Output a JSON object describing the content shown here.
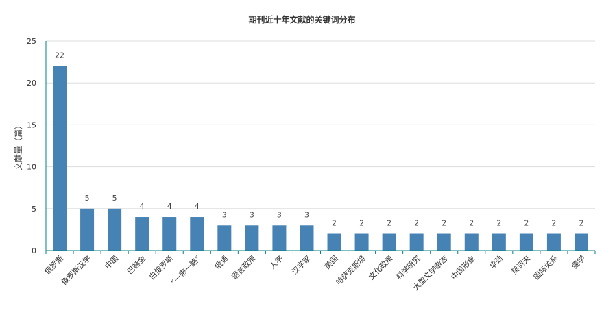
{
  "chart_data": {
    "type": "bar",
    "title": "期刊近十年文献的关键词分布",
    "ylabel": "文献量（篇）",
    "xlabel": "",
    "ylim": [
      0,
      25
    ],
    "yticks": [
      0,
      5,
      10,
      15,
      20,
      25
    ],
    "grid": true,
    "categories": [
      "俄罗斯",
      "俄罗斯汉学",
      "中国",
      "巴赫金",
      "白俄罗斯",
      "“一带一路”",
      "俄语",
      "语言政策",
      "人学",
      "汉学家",
      "美国",
      "哈萨克斯坦",
      "文化政策",
      "科学研究",
      "大型文学杂志",
      "中国形象",
      "华劲",
      "契诃夫",
      "国际关系",
      "儒学"
    ],
    "values": [
      22,
      5,
      5,
      4,
      4,
      4,
      3,
      3,
      3,
      3,
      2,
      2,
      2,
      2,
      2,
      2,
      2,
      2,
      2,
      2
    ],
    "colors": {
      "bar": "#4682b4",
      "axis": "#008080",
      "grid": "#dddddd"
    }
  }
}
